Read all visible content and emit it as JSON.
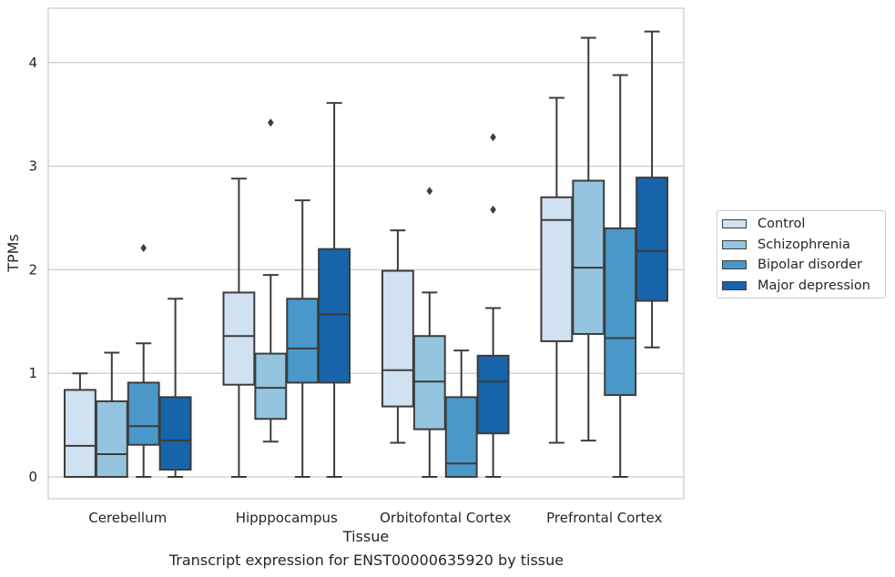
{
  "chart_data": {
    "type": "box",
    "xlabel": "Tissue",
    "ylabel": "TPMs",
    "caption": "Transcript expression for ENST00000635920 by tissue",
    "categories": [
      "Cerebellum",
      "Hipppocampus",
      "Orbitofontal Cortex",
      "Prefrontal Cortex"
    ],
    "ylim": [
      -0.18,
      4.52
    ],
    "yticks": [
      "0",
      "1",
      "2",
      "3",
      "4"
    ],
    "grid": "horizontal",
    "legend_position": "right",
    "series": [
      {
        "name": "Control",
        "color": "#d0e1f2",
        "boxes": [
          {
            "min": 0,
            "q1": 0,
            "median": 0.3,
            "q3": 0.84,
            "max": 1.0,
            "outliers": []
          },
          {
            "min": 0,
            "q1": 0.89,
            "median": 1.36,
            "q3": 1.78,
            "max": 2.88,
            "outliers": []
          },
          {
            "min": 0.33,
            "q1": 0.68,
            "median": 1.03,
            "q3": 1.99,
            "max": 2.38,
            "outliers": []
          },
          {
            "min": 0.33,
            "q1": 1.31,
            "median": 2.48,
            "q3": 2.7,
            "max": 3.66,
            "outliers": []
          }
        ]
      },
      {
        "name": "Schizophrenia",
        "color": "#94c4df",
        "boxes": [
          {
            "min": 0,
            "q1": 0,
            "median": 0.22,
            "q3": 0.73,
            "max": 1.2,
            "outliers": []
          },
          {
            "min": 0.34,
            "q1": 0.56,
            "median": 0.86,
            "q3": 1.19,
            "max": 1.95,
            "outliers": [
              3.42
            ]
          },
          {
            "min": 0,
            "q1": 0.46,
            "median": 0.92,
            "q3": 1.36,
            "max": 1.78,
            "outliers": [
              2.76
            ]
          },
          {
            "min": 0.35,
            "q1": 1.38,
            "median": 2.02,
            "q3": 2.86,
            "max": 4.24,
            "outliers": []
          }
        ]
      },
      {
        "name": "Bipolar disorder",
        "color": "#4a98c9",
        "boxes": [
          {
            "min": 0,
            "q1": 0.31,
            "median": 0.49,
            "q3": 0.91,
            "max": 1.29,
            "outliers": [
              2.21
            ]
          },
          {
            "min": 0,
            "q1": 0.91,
            "median": 1.24,
            "q3": 1.72,
            "max": 2.67,
            "outliers": []
          },
          {
            "min": 0,
            "q1": 0,
            "median": 0.13,
            "q3": 0.77,
            "max": 1.22,
            "outliers": []
          },
          {
            "min": 0,
            "q1": 0.79,
            "median": 1.34,
            "q3": 2.4,
            "max": 3.88,
            "outliers": []
          }
        ]
      },
      {
        "name": "Major depression",
        "color": "#1764ab",
        "boxes": [
          {
            "min": 0,
            "q1": 0.07,
            "median": 0.35,
            "q3": 0.77,
            "max": 1.72,
            "outliers": []
          },
          {
            "min": 0,
            "q1": 0.91,
            "median": 1.57,
            "q3": 2.2,
            "max": 3.61,
            "outliers": []
          },
          {
            "min": 0,
            "q1": 0.42,
            "median": 0.92,
            "q3": 1.17,
            "max": 1.63,
            "outliers": [
              2.58,
              3.28
            ]
          },
          {
            "min": 1.25,
            "q1": 1.7,
            "median": 2.18,
            "q3": 2.89,
            "max": 4.3,
            "outliers": []
          }
        ]
      }
    ]
  }
}
